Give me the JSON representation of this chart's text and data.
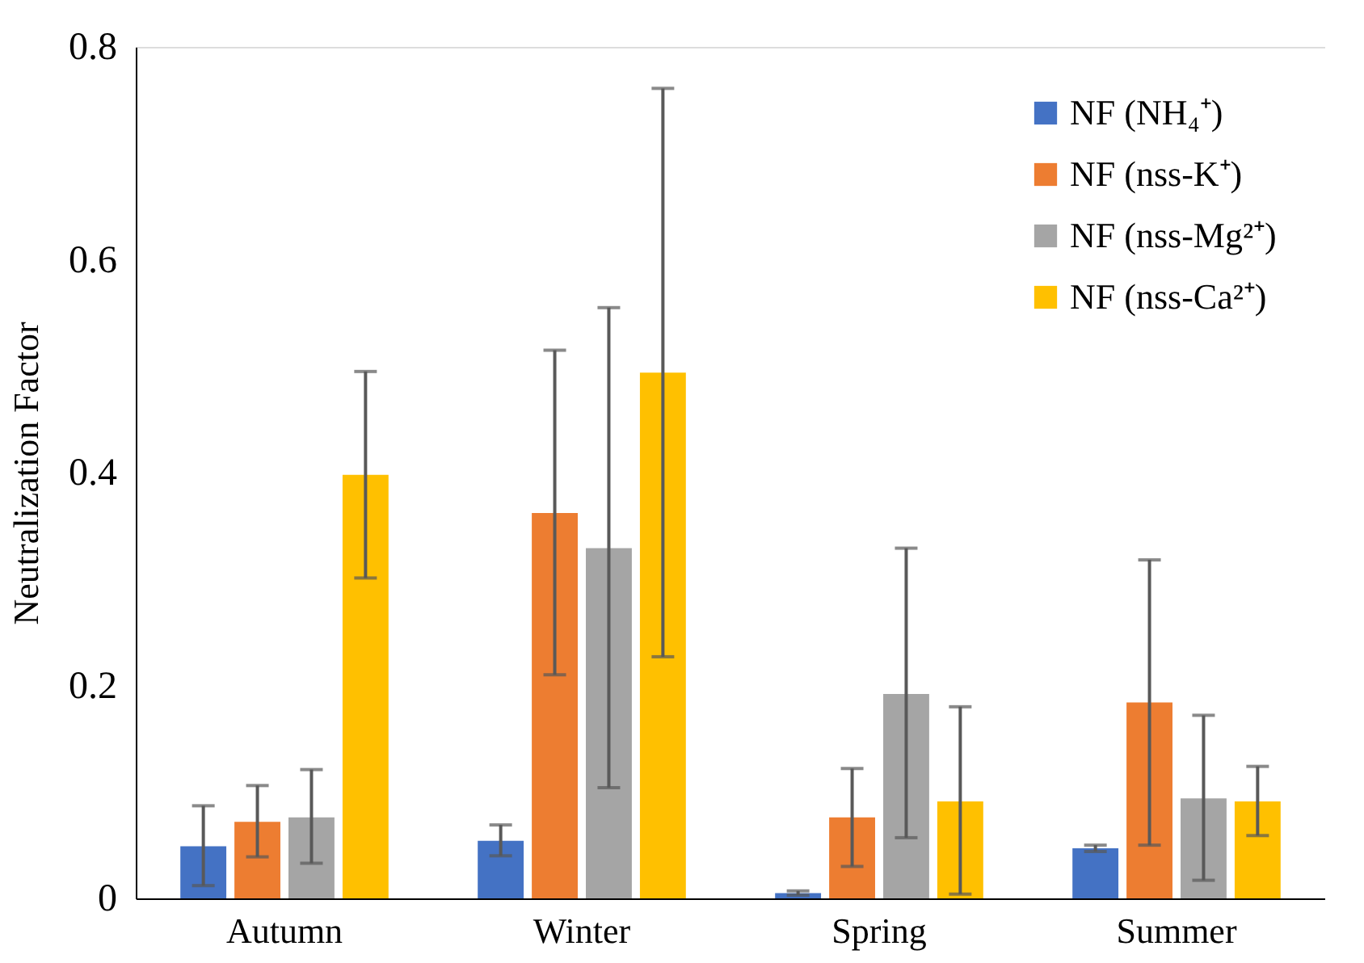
{
  "chart_data": {
    "type": "bar",
    "ylabel": "Neutralization Factor",
    "categories": [
      "Autumn",
      "Winter",
      "Spring",
      "Summer"
    ],
    "series": [
      {
        "name": "NF (NH₄⁺)",
        "color": "#4472c4",
        "values": [
          0.049,
          0.054,
          0.005,
          0.047
        ],
        "errors": [
          [
            0.012,
            0.087
          ],
          [
            0.04,
            0.069
          ],
          [
            0.003,
            0.007
          ],
          [
            0.044,
            0.05
          ]
        ]
      },
      {
        "name": "NF (nss-K⁺)",
        "color": "#ed7d31",
        "values": [
          0.072,
          0.362,
          0.076,
          0.184
        ],
        "errors": [
          [
            0.039,
            0.106
          ],
          [
            0.21,
            0.515
          ],
          [
            0.03,
            0.122
          ],
          [
            0.05,
            0.318
          ]
        ]
      },
      {
        "name": "NF (nss-Mg²⁺)",
        "color": "#a5a5a5",
        "values": [
          0.076,
          0.329,
          0.192,
          0.094
        ],
        "errors": [
          [
            0.033,
            0.121
          ],
          [
            0.104,
            0.555
          ],
          [
            0.057,
            0.329
          ],
          [
            0.017,
            0.172
          ]
        ]
      },
      {
        "name": "NF (nss-Ca²⁺)",
        "color": "#ffc000",
        "values": [
          0.398,
          0.494,
          0.091,
          0.091
        ],
        "errors": [
          [
            0.301,
            0.495
          ],
          [
            0.227,
            0.761
          ],
          [
            0.004,
            0.18
          ],
          [
            0.059,
            0.124
          ]
        ]
      }
    ],
    "ylim": [
      0,
      0.8
    ],
    "yticks": [
      0,
      0.2,
      0.4,
      0.6,
      0.8
    ],
    "grid": false,
    "legend": "top right"
  }
}
